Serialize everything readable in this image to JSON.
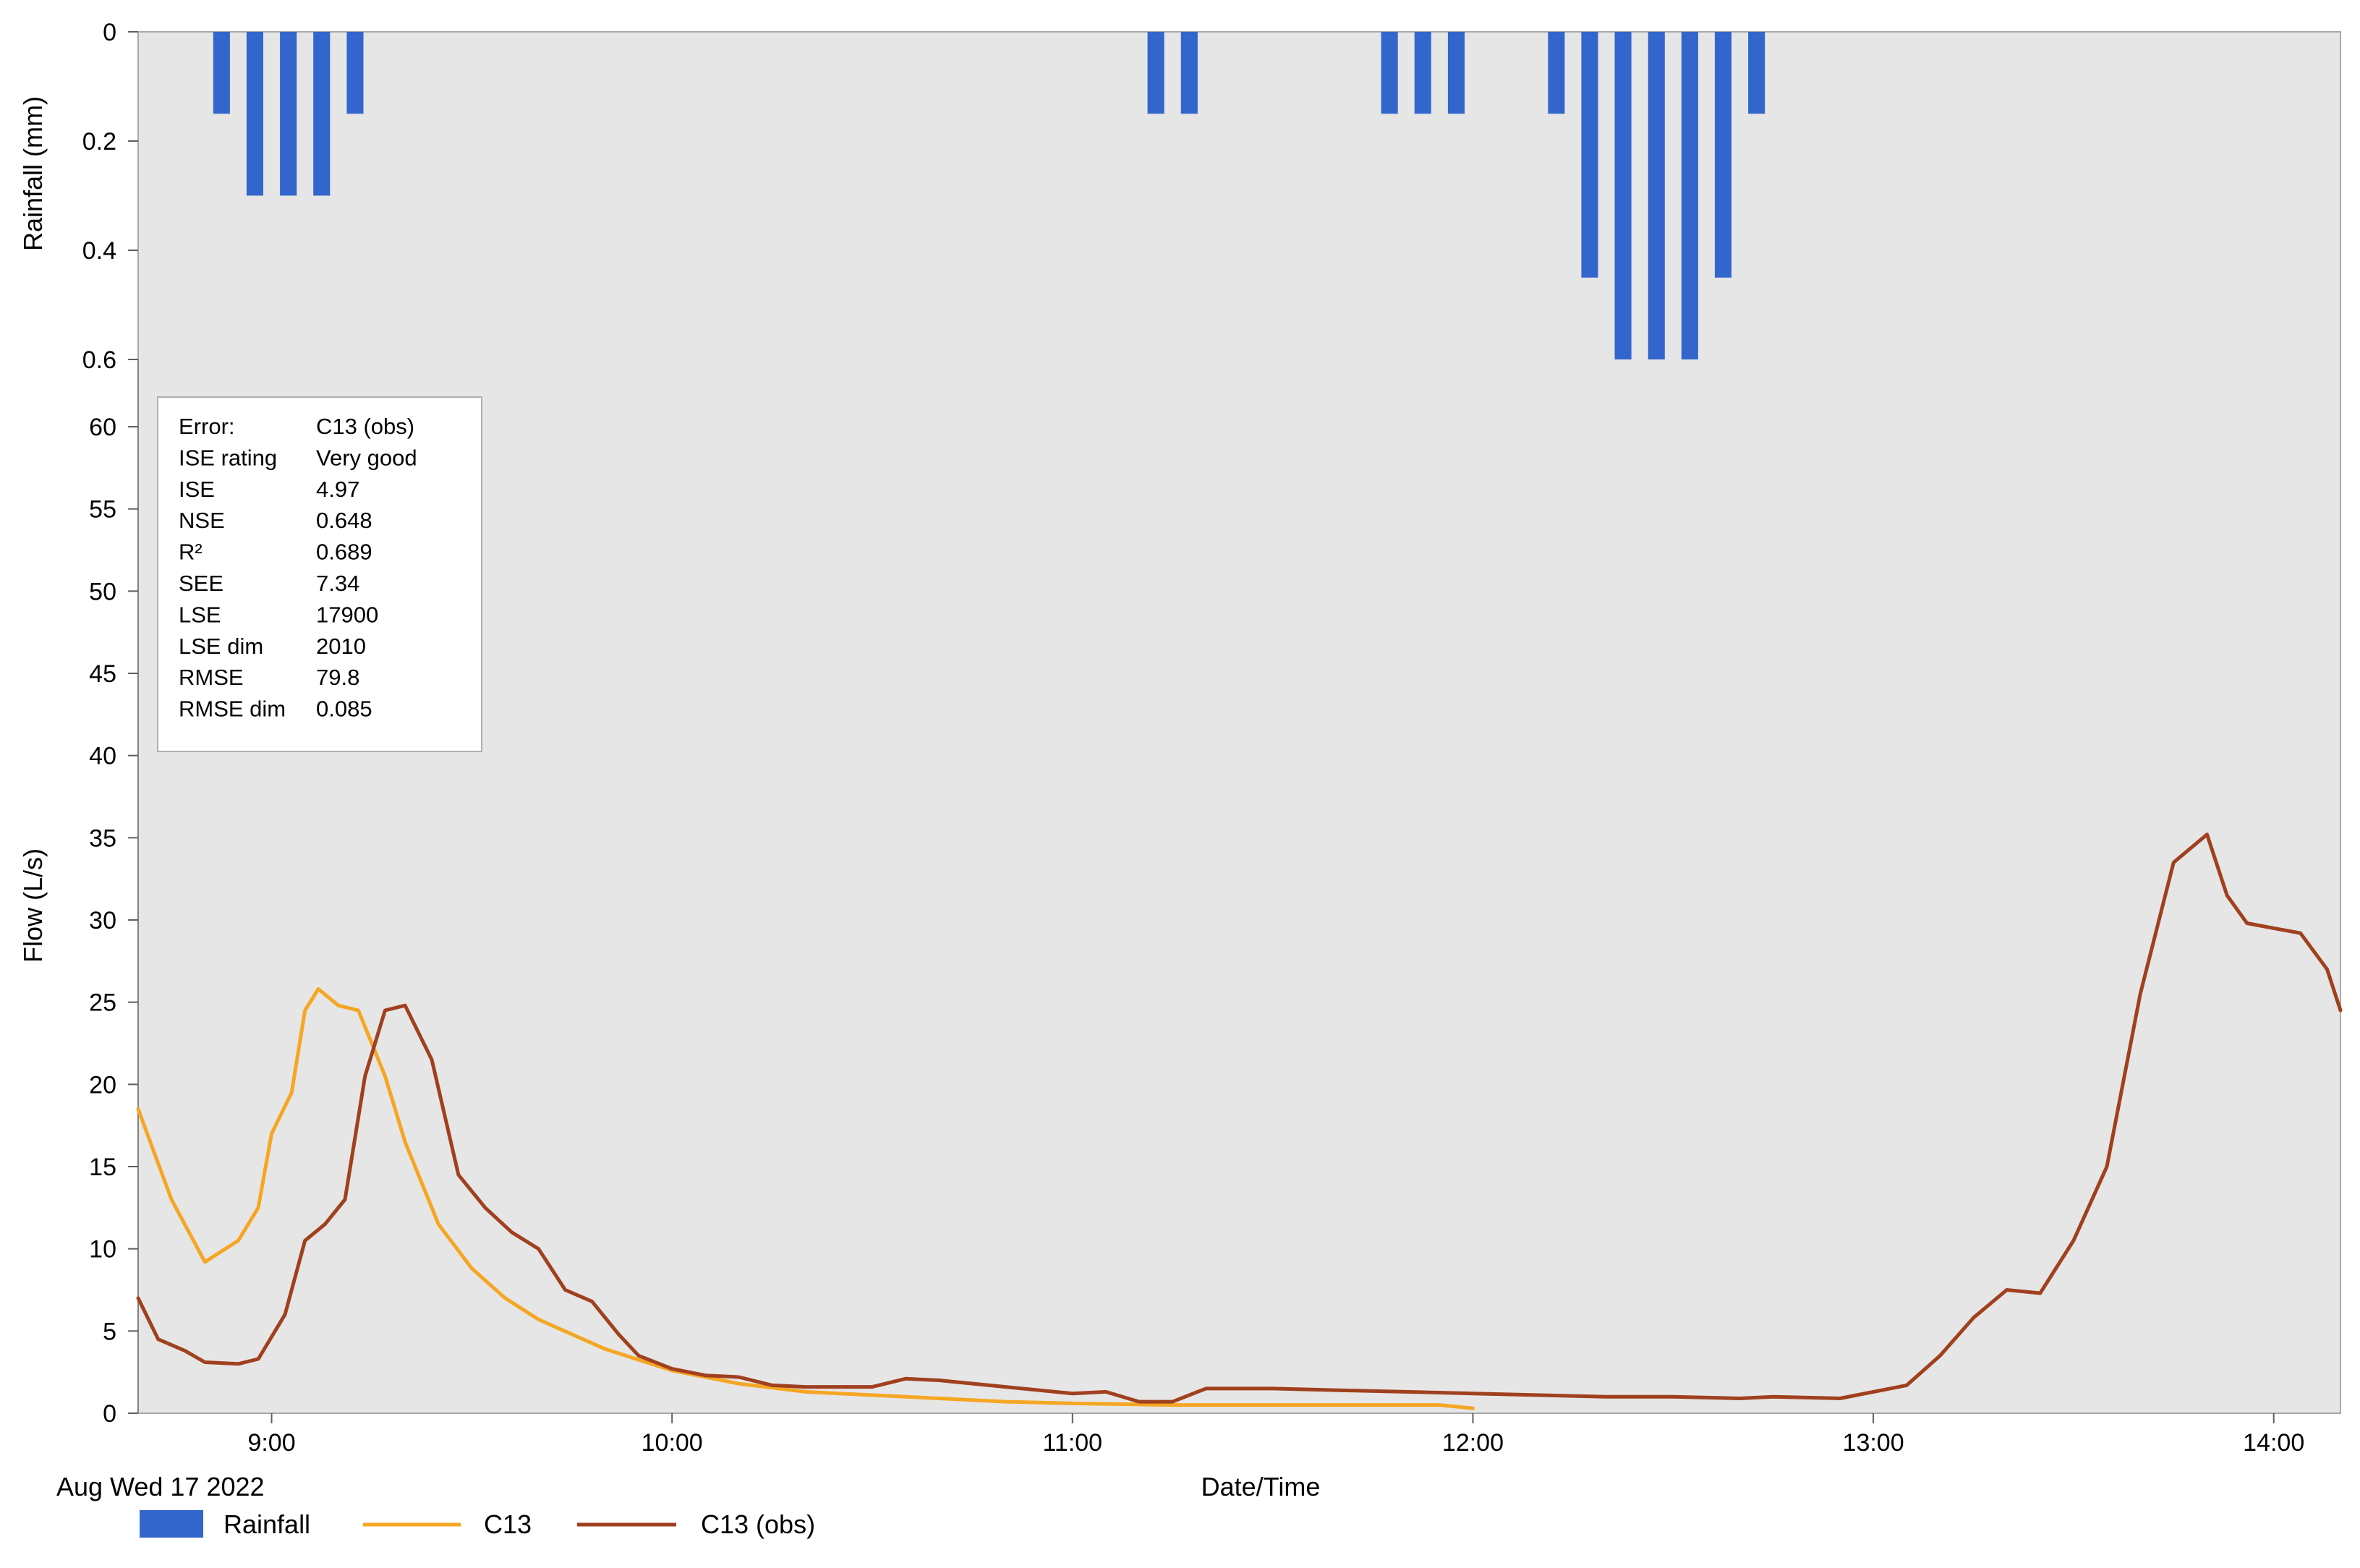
{
  "chart_data": {
    "type": "line",
    "date_label": "Aug Wed 17 2022",
    "xlabel": "Date/Time",
    "x_ticks": [
      "9:00",
      "10:00",
      "11:00",
      "12:00",
      "13:00",
      "14:00"
    ],
    "x_range": [
      "08:40",
      "14:10"
    ],
    "rainfall": {
      "ylabel": "Rainfall (mm)",
      "ylim": [
        0,
        0.6
      ],
      "y_ticks": [
        "0",
        "0.2",
        "0.4",
        "0.6"
      ],
      "inverted": true,
      "interval_minutes": 5,
      "times": [
        "08:50",
        "08:55",
        "09:00",
        "09:05",
        "09:10",
        "11:10",
        "11:15",
        "11:45",
        "11:50",
        "11:55",
        "12:10",
        "12:15",
        "12:20",
        "12:25",
        "12:30",
        "12:35",
        "12:40"
      ],
      "values": [
        0.15,
        0.3,
        0.3,
        0.3,
        0.15,
        0.15,
        0.15,
        0.15,
        0.15,
        0.15,
        0.15,
        0.45,
        0.6,
        0.6,
        0.6,
        0.45,
        0.15
      ]
    },
    "flow": {
      "ylabel": "Flow (L/s)",
      "ylim": [
        0,
        60
      ],
      "y_ticks": [
        "0",
        "5",
        "10",
        "15",
        "20",
        "25",
        "30",
        "35",
        "40",
        "45",
        "50",
        "55",
        "60"
      ]
    },
    "series": [
      {
        "name": "C13",
        "color": "#F5A623",
        "points": [
          [
            "08:40",
            18.5
          ],
          [
            "08:45",
            13
          ],
          [
            "08:50",
            9.2
          ],
          [
            "08:55",
            10.5
          ],
          [
            "08:58",
            12.5
          ],
          [
            "09:00",
            17
          ],
          [
            "09:03",
            19.5
          ],
          [
            "09:05",
            24.5
          ],
          [
            "09:07",
            25.8
          ],
          [
            "09:10",
            24.8
          ],
          [
            "09:13",
            24.5
          ],
          [
            "09:17",
            20.5
          ],
          [
            "09:20",
            16.5
          ],
          [
            "09:25",
            11.5
          ],
          [
            "09:30",
            8.8
          ],
          [
            "09:35",
            7
          ],
          [
            "09:40",
            5.7
          ],
          [
            "09:50",
            3.9
          ],
          [
            "10:00",
            2.6
          ],
          [
            "10:10",
            1.8
          ],
          [
            "10:20",
            1.3
          ],
          [
            "10:40",
            0.9
          ],
          [
            "11:00",
            0.6
          ],
          [
            "11:15",
            0.5
          ],
          [
            "10:50",
            0.7
          ],
          [
            "11:55",
            0.5
          ],
          [
            "12:00",
            0.3
          ]
        ]
      },
      {
        "name": "C13 (obs)",
        "color": "#A0401E",
        "points": [
          [
            "08:40",
            7
          ],
          [
            "08:43",
            4.5
          ],
          [
            "08:47",
            3.8
          ],
          [
            "08:50",
            3.1
          ],
          [
            "08:55",
            3
          ],
          [
            "08:58",
            3.3
          ],
          [
            "09:02",
            6
          ],
          [
            "09:05",
            10.5
          ],
          [
            "09:08",
            11.5
          ],
          [
            "09:11",
            13
          ],
          [
            "09:14",
            20.5
          ],
          [
            "09:17",
            24.5
          ],
          [
            "09:20",
            24.8
          ],
          [
            "09:24",
            21.5
          ],
          [
            "09:28",
            14.5
          ],
          [
            "09:32",
            12.5
          ],
          [
            "09:36",
            11
          ],
          [
            "09:40",
            10
          ],
          [
            "09:44",
            7.5
          ],
          [
            "09:48",
            6.8
          ],
          [
            "09:52",
            4.8
          ],
          [
            "09:55",
            3.5
          ],
          [
            "10:00",
            2.7
          ],
          [
            "10:05",
            2.3
          ],
          [
            "10:10",
            2.2
          ],
          [
            "10:15",
            1.7
          ],
          [
            "10:20",
            1.6
          ],
          [
            "10:30",
            1.6
          ],
          [
            "10:35",
            2.1
          ],
          [
            "10:40",
            2
          ],
          [
            "10:50",
            1.6
          ],
          [
            "11:00",
            1.2
          ],
          [
            "11:05",
            1.3
          ],
          [
            "11:10",
            0.7
          ],
          [
            "11:15",
            0.7
          ],
          [
            "11:20",
            1.5
          ],
          [
            "11:30",
            1.5
          ],
          [
            "11:40",
            1.4
          ],
          [
            "11:50",
            1.3
          ],
          [
            "12:00",
            1.2
          ],
          [
            "12:10",
            1.1
          ],
          [
            "12:20",
            1
          ],
          [
            "12:30",
            1
          ],
          [
            "12:40",
            0.9
          ],
          [
            "12:45",
            1
          ],
          [
            "12:55",
            0.9
          ],
          [
            "13:05",
            1.7
          ],
          [
            "13:10",
            3.5
          ],
          [
            "13:15",
            5.8
          ],
          [
            "13:20",
            7.5
          ],
          [
            "13:25",
            7.3
          ],
          [
            "13:30",
            10.5
          ],
          [
            "13:35",
            15
          ],
          [
            "13:40",
            25.5
          ],
          [
            "13:45",
            33.5
          ],
          [
            "13:50",
            35.2
          ],
          [
            "13:53",
            31.5
          ],
          [
            "13:56",
            29.8
          ],
          [
            "14:00",
            29.5
          ],
          [
            "14:04",
            29.2
          ],
          [
            "14:08",
            27
          ],
          [
            "14:10",
            24.5
          ]
        ]
      }
    ],
    "legend": {
      "placement": "bottom-left",
      "entries": [
        "Rainfall",
        "C13",
        "C13 (obs)"
      ],
      "rainfall_color": "#3366CC"
    },
    "stats_box": {
      "placement": "top-left",
      "rows": [
        [
          "Error:",
          "C13 (obs)"
        ],
        [
          "ISE rating",
          "Very good"
        ],
        [
          "ISE",
          "4.97"
        ],
        [
          "NSE",
          "0.648"
        ],
        [
          "R²",
          "0.689"
        ],
        [
          "SEE",
          "7.34"
        ],
        [
          "LSE",
          "17900"
        ],
        [
          "LSE dim",
          "2010"
        ],
        [
          "RMSE",
          "79.8"
        ],
        [
          "RMSE dim",
          "0.085"
        ]
      ]
    }
  }
}
